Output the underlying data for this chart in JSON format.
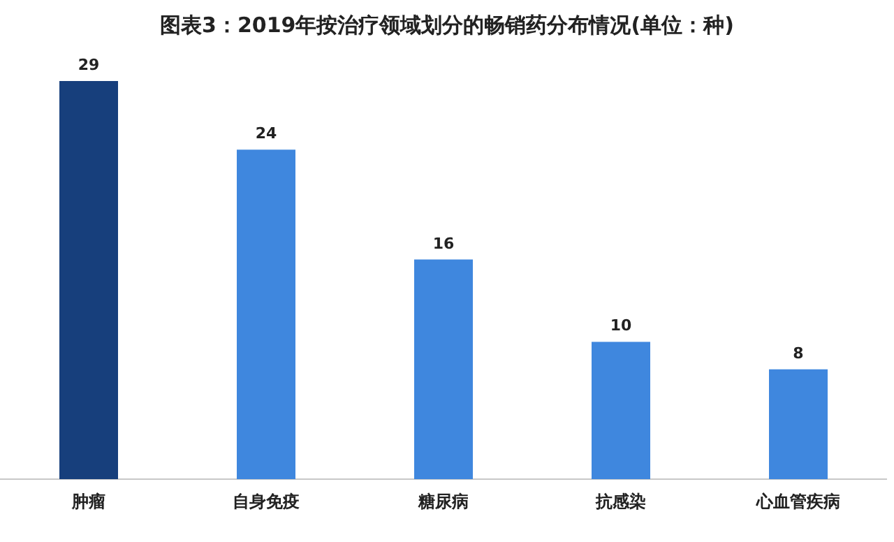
{
  "chart_data": {
    "type": "bar",
    "title": "图表3：2019年按治疗领域划分的畅销药分布情况(单位：种)",
    "categories": [
      "肿瘤",
      "自身免疫",
      "糖尿病",
      "抗感染",
      "心血管疾病"
    ],
    "values": [
      29,
      24,
      16,
      10,
      8
    ],
    "colors": [
      "#173f7c",
      "#3f87de",
      "#3f87de",
      "#3f87de",
      "#3f87de"
    ],
    "data_labels": true
  }
}
